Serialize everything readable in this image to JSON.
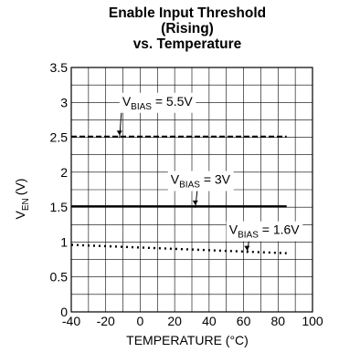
{
  "chart_data": {
    "type": "line",
    "title_lines": [
      "Enable Input Threshold",
      "(Rising)",
      "vs. Temperature"
    ],
    "xlabel": "TEMPERATURE (°C)",
    "ylabel_main": "V",
    "ylabel_sub": "EN",
    "ylabel_unit": "(V)",
    "xlim": [
      -40,
      100
    ],
    "ylim": [
      0,
      3.5
    ],
    "xticks": [
      -40,
      -20,
      0,
      20,
      40,
      60,
      80,
      100
    ],
    "xtick_labels": [
      "-40",
      "-20",
      "0",
      "20",
      "40",
      "60",
      "80",
      "100"
    ],
    "yticks": [
      0,
      0.5,
      1,
      1.5,
      2,
      2.5,
      3,
      3.5
    ],
    "ytick_labels": [
      "0",
      "0.5",
      "1",
      "1.5",
      "2",
      "2.5",
      "3",
      "3.5"
    ],
    "grid": true,
    "series": [
      {
        "label_main": "V",
        "label_sub": "BIAS",
        "label_value": " = 5.5V",
        "x": [
          -40,
          85
        ],
        "y": [
          2.51,
          2.51
        ],
        "style": "dashed",
        "color": "#000000"
      },
      {
        "label_main": "V",
        "label_sub": "BIAS",
        "label_value": " = 3V",
        "x": [
          -40,
          85
        ],
        "y": [
          1.51,
          1.51
        ],
        "style": "solid",
        "color": "#000000"
      },
      {
        "label_main": "V",
        "label_sub": "BIAS",
        "label_value": " = 1.6V",
        "x": [
          -40,
          85
        ],
        "y": [
          0.96,
          0.84
        ],
        "style": "dotted",
        "color": "#000000"
      }
    ]
  }
}
